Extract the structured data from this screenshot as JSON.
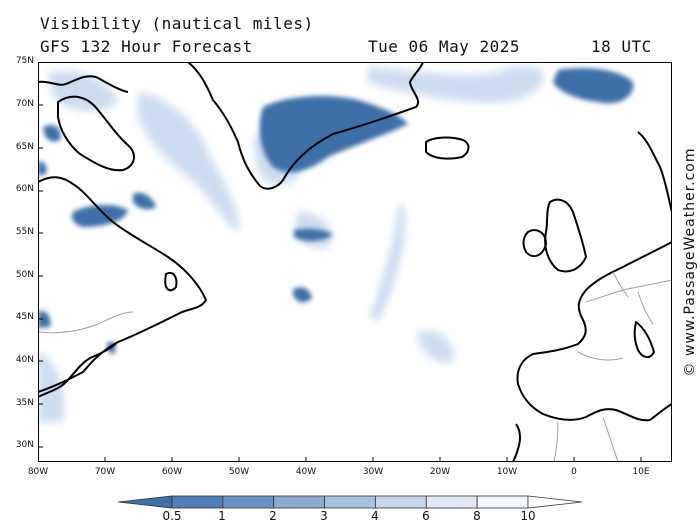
{
  "header": {
    "title": "Visibility (nautical miles)",
    "model": "GFS 132 Hour Forecast",
    "date": "Tue 06 May 2025",
    "time": "18 UTC"
  },
  "credit": "© www.PassageWeather.com",
  "axes": {
    "lat_labels": [
      "75N",
      "70N",
      "65N",
      "60N",
      "55N",
      "50N",
      "45N",
      "40N",
      "35N",
      "30N"
    ],
    "lon_labels": [
      "80W",
      "70W",
      "60W",
      "50W",
      "40W",
      "30W",
      "20W",
      "10W",
      "0",
      "10E"
    ]
  },
  "colorbar": {
    "labels": [
      "0.5",
      "1",
      "2",
      "3",
      "4",
      "6",
      "8",
      "10"
    ],
    "colors": [
      "#3d6fa8",
      "#4f7fb8",
      "#6b93c6",
      "#8aaad4",
      "#a9c1e0",
      "#c6d7ec",
      "#e0e9f5",
      "#f4f8fc",
      "#ffffff"
    ]
  },
  "colors": {
    "coast": "#000000",
    "border": "#a0a0a0",
    "fog_dark": "#3d6fa8",
    "fog_light": "#c3d6ee"
  }
}
